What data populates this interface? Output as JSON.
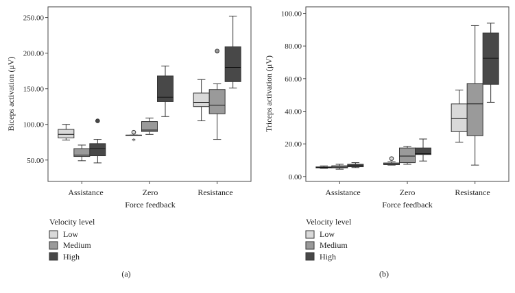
{
  "legend": {
    "title": "Velocity level",
    "items": [
      {
        "label": "Low",
        "color": "#d9d9d9"
      },
      {
        "label": "Medium",
        "color": "#9a9a9a"
      },
      {
        "label": "High",
        "color": "#484848"
      }
    ]
  },
  "chart_data": [
    {
      "type": "box",
      "panel_label": "(a)",
      "ylabel": "Biceps activation (μV)",
      "xlabel": "Force feedback",
      "ylim": [
        20,
        265
      ],
      "yticks": [
        50,
        100,
        150,
        200,
        250
      ],
      "ytick_labels": [
        "50.00",
        "100.00",
        "150.00",
        "200.00",
        "250.00"
      ],
      "categories": [
        "Assistance",
        "Zero",
        "Resistance"
      ],
      "series": [
        {
          "name": "Low",
          "boxes": [
            {
              "min": 78,
              "q1": 81,
              "median": 86,
              "q3": 93,
              "max": 100,
              "outliers": []
            },
            {
              "min": 85,
              "q1": 85,
              "median": 85,
              "q3": 85,
              "max": 85,
              "outliers": [
                {
                  "value": 89,
                  "marker": "circle"
                },
                {
                  "value": 78,
                  "marker": "star"
                }
              ]
            },
            {
              "min": 105,
              "q1": 125,
              "median": 131,
              "q3": 144,
              "max": 163,
              "outliers": []
            }
          ]
        },
        {
          "name": "Medium",
          "boxes": [
            {
              "min": 49,
              "q1": 55,
              "median": 57,
              "q3": 66,
              "max": 71,
              "outliers": []
            },
            {
              "min": 86,
              "q1": 90,
              "median": 92,
              "q3": 104,
              "max": 109,
              "outliers": []
            },
            {
              "min": 79,
              "q1": 115,
              "median": 127,
              "q3": 149,
              "max": 157,
              "outliers": [
                {
                  "value": 203,
                  "marker": "circle"
                }
              ]
            }
          ]
        },
        {
          "name": "High",
          "boxes": [
            {
              "min": 46,
              "q1": 56,
              "median": 66,
              "q3": 73,
              "max": 79,
              "outliers": [
                {
                  "value": 105,
                  "marker": "circle"
                }
              ]
            },
            {
              "min": 111,
              "q1": 132,
              "median": 138,
              "q3": 168,
              "max": 182,
              "outliers": []
            },
            {
              "min": 151,
              "q1": 160,
              "median": 180,
              "q3": 209,
              "max": 252,
              "outliers": []
            }
          ]
        }
      ]
    },
    {
      "type": "box",
      "panel_label": "(b)",
      "ylabel": "Triceps activation (μV)",
      "xlabel": "Force feedback",
      "ylim": [
        -3,
        104
      ],
      "yticks": [
        0,
        20,
        40,
        60,
        80,
        100
      ],
      "ytick_labels": [
        "0.00",
        "20.00",
        "40.00",
        "60.00",
        "80.00",
        "100.00"
      ],
      "categories": [
        "Assistance",
        "Zero",
        "Resistance"
      ],
      "series": [
        {
          "name": "Low",
          "boxes": [
            {
              "min": 5,
              "q1": 5.3,
              "median": 5.6,
              "q3": 5.9,
              "max": 6.5,
              "outliers": []
            },
            {
              "min": 7,
              "q1": 7.3,
              "median": 7.8,
              "q3": 8.3,
              "max": 9,
              "outliers": [
                {
                  "value": 11,
                  "marker": "circle"
                }
              ]
            },
            {
              "min": 21,
              "q1": 27.5,
              "median": 35.5,
              "q3": 44.5,
              "max": 53,
              "outliers": []
            }
          ]
        },
        {
          "name": "Medium",
          "boxes": [
            {
              "min": 4.5,
              "q1": 5.3,
              "median": 5.8,
              "q3": 6.6,
              "max": 7.5,
              "outliers": []
            },
            {
              "min": 7.5,
              "q1": 8.5,
              "median": 12.5,
              "q3": 17.5,
              "max": 18.5,
              "outliers": []
            },
            {
              "min": 7,
              "q1": 25,
              "median": 44.5,
              "q3": 57,
              "max": 92.5,
              "outliers": []
            }
          ]
        },
        {
          "name": "High",
          "boxes": [
            {
              "min": 5.5,
              "q1": 6,
              "median": 6.6,
              "q3": 7.5,
              "max": 8.5,
              "outliers": []
            },
            {
              "min": 9.5,
              "q1": 13.5,
              "median": 14,
              "q3": 17.5,
              "max": 23,
              "outliers": []
            },
            {
              "min": 45.5,
              "q1": 56.5,
              "median": 72.5,
              "q3": 88,
              "max": 94,
              "outliers": []
            }
          ]
        }
      ]
    }
  ]
}
